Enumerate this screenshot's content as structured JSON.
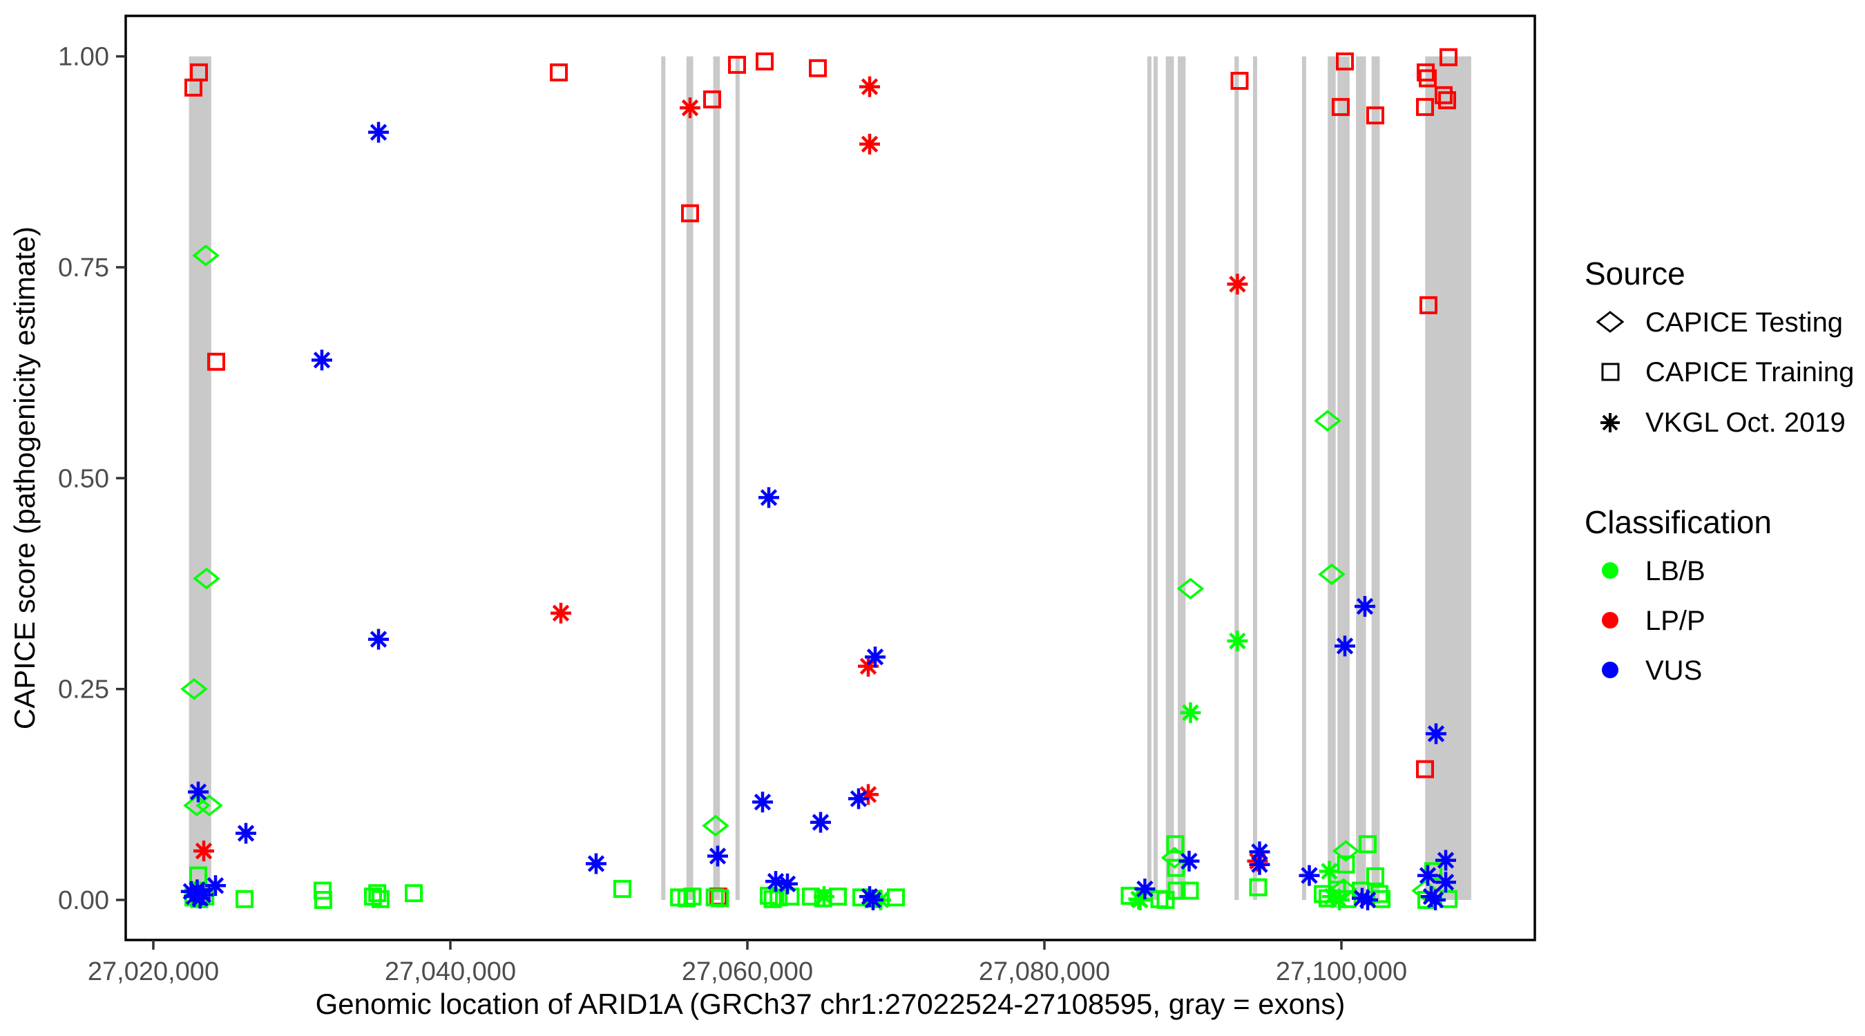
{
  "figure": {
    "x_axis_title": "Genomic location of ARID1A (GRCh37 chr1:27022524-27108595, gray = exons)",
    "y_axis_title": "CAPICE score (pathogenicity estimate)",
    "exon_color": "#c9c9c9",
    "panel_border_color": "#000000",
    "tick_text_color": "#4d4d4d"
  },
  "legend": {
    "source": {
      "title": "Source",
      "items": [
        {
          "label": "CAPICE Testing",
          "marker": "diamond"
        },
        {
          "label": "CAPICE Training",
          "marker": "square"
        },
        {
          "label": "VKGL Oct. 2019",
          "marker": "asterisk"
        }
      ]
    },
    "classification": {
      "title": "Classification",
      "items": [
        {
          "label": "LB/B",
          "color": "#00ff00"
        },
        {
          "label": "LP/P",
          "color": "#ff0000"
        },
        {
          "label": "VUS",
          "color": "#0000ff"
        }
      ]
    }
  },
  "chart_data": {
    "type": "scatter",
    "title": "",
    "xlabel": "Genomic location of ARID1A (GRCh37 chr1:27022524-27108595, gray = exons)",
    "ylabel": "CAPICE score (pathogenicity estimate)",
    "x_domain_bp": [
      27018140,
      27113023
    ],
    "y_domain": [
      -0.0475,
      1.048
    ],
    "x_ticks": [
      {
        "bp": 27020000,
        "label": "27,020,000"
      },
      {
        "bp": 27040000,
        "label": "27,040,000"
      },
      {
        "bp": 27060000,
        "label": "27,060,000"
      },
      {
        "bp": 27080000,
        "label": "27,080,000"
      },
      {
        "bp": 27100000,
        "label": "27,100,000"
      }
    ],
    "y_ticks": [
      {
        "v": 0.0,
        "label": "0.00"
      },
      {
        "v": 0.25,
        "label": "0.25"
      },
      {
        "v": 0.5,
        "label": "0.50"
      },
      {
        "v": 0.75,
        "label": "0.75"
      },
      {
        "v": 1.0,
        "label": "1.00"
      }
    ],
    "grid": false,
    "legend_position": "right",
    "exons_bp": [
      [
        27022400,
        27023900
      ],
      [
        27054200,
        27054480
      ],
      [
        27055900,
        27056350
      ],
      [
        27057700,
        27058150
      ],
      [
        27059200,
        27059480
      ],
      [
        27086980,
        27087160
      ],
      [
        27087400,
        27087580
      ],
      [
        27088230,
        27088400
      ],
      [
        27088500,
        27088660
      ],
      [
        27089040,
        27089200
      ],
      [
        27089290,
        27089450
      ],
      [
        27092800,
        27093090
      ],
      [
        27094080,
        27094290
      ],
      [
        27097380,
        27097590
      ],
      [
        27099140,
        27099300
      ],
      [
        27099390,
        27099560
      ],
      [
        27099790,
        27099960
      ],
      [
        27100070,
        27100240
      ],
      [
        27100320,
        27100500
      ],
      [
        27100980,
        27101650
      ],
      [
        27102080,
        27102260
      ],
      [
        27102350,
        27102530
      ],
      [
        27105640,
        27108740
      ]
    ],
    "series": [
      {
        "source": "CAPICE Training",
        "classification": "LP/P",
        "marker": "square",
        "color": "#ff0000",
        "points": [
          [
            27022698,
            0.963
          ],
          [
            27023070,
            0.981
          ],
          [
            27024233,
            0.638
          ],
          [
            27047302,
            0.981
          ],
          [
            27056140,
            0.814
          ],
          [
            27057628,
            0.949
          ],
          [
            27058047,
            0.004
          ],
          [
            27059302,
            0.99
          ],
          [
            27061163,
            0.994
          ],
          [
            27064744,
            0.986
          ],
          [
            27093140,
            0.971
          ],
          [
            27099953,
            0.94
          ],
          [
            27100233,
            0.994
          ],
          [
            27102279,
            0.93
          ],
          [
            27105628,
            0.94
          ],
          [
            27105674,
            0.981
          ],
          [
            27105814,
            0.974
          ],
          [
            27105860,
            0.705
          ],
          [
            27106883,
            0.954
          ],
          [
            27107116,
            0.948
          ],
          [
            27107209,
            0.999
          ],
          [
            27105628,
            0.155
          ]
        ]
      },
      {
        "source": "CAPICE Training",
        "classification": "LB/B",
        "marker": "square",
        "color": "#00ff00",
        "points": [
          [
            27022700,
            0.003
          ],
          [
            27023100,
            0.001
          ],
          [
            27023500,
            0.004
          ],
          [
            27023023,
            0.029
          ],
          [
            27026140,
            0.001
          ],
          [
            27031395,
            0.011
          ],
          [
            27031440,
            0.0
          ],
          [
            27034790,
            0.004
          ],
          [
            27035080,
            0.008
          ],
          [
            27035300,
            0.001
          ],
          [
            27037535,
            0.008
          ],
          [
            27051581,
            0.013
          ],
          [
            27055400,
            0.003
          ],
          [
            27055900,
            0.002
          ],
          [
            27056300,
            0.004
          ],
          [
            27057800,
            0.003
          ],
          [
            27058150,
            0.002
          ],
          [
            27061442,
            0.005
          ],
          [
            27061700,
            0.001
          ],
          [
            27062100,
            0.003
          ],
          [
            27062900,
            0.004
          ],
          [
            27064279,
            0.004
          ],
          [
            27065100,
            0.002
          ],
          [
            27066093,
            0.004
          ],
          [
            27067674,
            0.003
          ],
          [
            27068500,
            0.001
          ],
          [
            27070000,
            0.003
          ],
          [
            27085744,
            0.005
          ],
          [
            27087744,
            0.001
          ],
          [
            27088163,
            0.0
          ],
          [
            27088814,
            0.066
          ],
          [
            27088860,
            0.038
          ],
          [
            27088907,
            0.011
          ],
          [
            27089791,
            0.011
          ],
          [
            27094395,
            0.015
          ],
          [
            27098744,
            0.007
          ],
          [
            27099070,
            0.002
          ],
          [
            27099700,
            0.012
          ],
          [
            27100400,
            0.001
          ],
          [
            27100302,
            0.042
          ],
          [
            27101302,
            0.011
          ],
          [
            27101767,
            0.066
          ],
          [
            27102279,
            0.028
          ],
          [
            27102558,
            0.007
          ],
          [
            27102698,
            0.001
          ],
          [
            27106186,
            0.034
          ],
          [
            27105721,
            0.0
          ],
          [
            27107209,
            0.001
          ]
        ]
      },
      {
        "source": "CAPICE Testing",
        "classification": "LB/B",
        "marker": "diamond",
        "color": "#00ff00",
        "points": [
          [
            27023535,
            0.764
          ],
          [
            27023581,
            0.381
          ],
          [
            27022744,
            0.25
          ],
          [
            27022930,
            0.112
          ],
          [
            27023767,
            0.112
          ],
          [
            27057860,
            0.088
          ],
          [
            27089837,
            0.369
          ],
          [
            27088767,
            0.05
          ],
          [
            27099070,
            0.568
          ],
          [
            27099349,
            0.386
          ],
          [
            27100302,
            0.058
          ],
          [
            27100140,
            0.013
          ],
          [
            27105628,
            0.011
          ]
        ]
      },
      {
        "source": "VKGL Oct. 2019",
        "classification": "LP/P",
        "marker": "asterisk",
        "color": "#ff0000",
        "points": [
          [
            27023395,
            0.058
          ],
          [
            27047442,
            0.34
          ],
          [
            27056140,
            0.939
          ],
          [
            27068233,
            0.964
          ],
          [
            27068233,
            0.896
          ],
          [
            27068140,
            0.277
          ],
          [
            27068140,
            0.125
          ],
          [
            27092998,
            0.73
          ],
          [
            27094349,
            0.046
          ]
        ]
      },
      {
        "source": "VKGL Oct. 2019",
        "classification": "LB/B",
        "marker": "asterisk",
        "color": "#00ff00",
        "points": [
          [
            27065163,
            0.004
          ],
          [
            27068977,
            0.0
          ],
          [
            27086349,
            0.001
          ],
          [
            27086442,
            0.0
          ],
          [
            27089837,
            0.222
          ],
          [
            27092998,
            0.307
          ],
          [
            27099186,
            0.034
          ],
          [
            27099395,
            0.004
          ],
          [
            27099860,
            0.0
          ]
        ]
      },
      {
        "source": "VKGL Oct. 2019",
        "classification": "VUS",
        "marker": "asterisk",
        "color": "#0000ff",
        "points": [
          [
            27023023,
            0.128
          ],
          [
            27022550,
            0.01
          ],
          [
            27022750,
            0.004
          ],
          [
            27022950,
            0.012
          ],
          [
            27023150,
            0.002
          ],
          [
            27023350,
            0.006
          ],
          [
            27024186,
            0.017
          ],
          [
            27026233,
            0.079
          ],
          [
            27031348,
            0.64
          ],
          [
            27035163,
            0.91
          ],
          [
            27035163,
            0.309
          ],
          [
            27049814,
            0.043
          ],
          [
            27058000,
            0.052
          ],
          [
            27061023,
            0.116
          ],
          [
            27061442,
            0.477
          ],
          [
            27061907,
            0.022
          ],
          [
            27062698,
            0.019
          ],
          [
            27064930,
            0.092
          ],
          [
            27067488,
            0.12
          ],
          [
            27068605,
            0.288
          ],
          [
            27068233,
            0.004
          ],
          [
            27068466,
            0.0
          ],
          [
            27086767,
            0.013
          ],
          [
            27089744,
            0.046
          ],
          [
            27094488,
            0.057
          ],
          [
            27094488,
            0.042
          ],
          [
            27097837,
            0.029
          ],
          [
            27100233,
            0.301
          ],
          [
            27101581,
            0.348
          ],
          [
            27101395,
            0.002
          ],
          [
            27101767,
            0.0
          ],
          [
            27106372,
            0.197
          ],
          [
            27107023,
            0.047
          ],
          [
            27105814,
            0.029
          ],
          [
            27107023,
            0.021
          ],
          [
            27106047,
            0.004
          ],
          [
            27106326,
            0.0
          ]
        ]
      }
    ]
  }
}
